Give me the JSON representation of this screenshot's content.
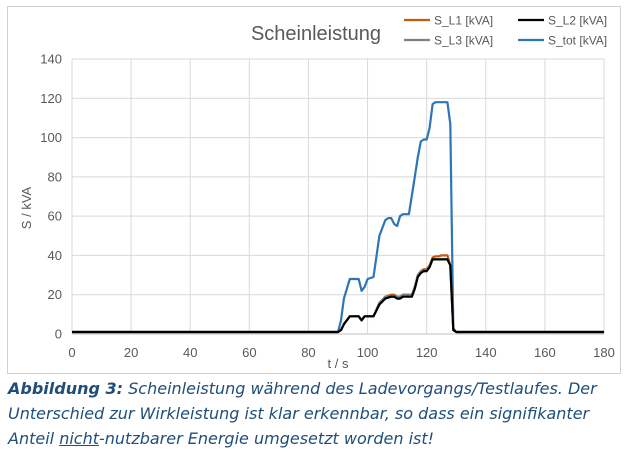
{
  "chart_data": {
    "type": "line",
    "title": "Scheinleistung",
    "xlabel": "t / s",
    "ylabel": "S / kVA",
    "xlim": [
      0,
      180
    ],
    "ylim": [
      0,
      140
    ],
    "xticks": [
      "0",
      "20",
      "40",
      "60",
      "80",
      "100",
      "120",
      "140",
      "160",
      "180"
    ],
    "yticks": [
      "0",
      "20",
      "40",
      "60",
      "80",
      "100",
      "120",
      "140"
    ],
    "grid": true,
    "legend_position": "top-right",
    "series": [
      {
        "name": "S_L1 [kVA]",
        "color": "#c55a11",
        "x": [
          0,
          90,
          91,
          92,
          94,
          96,
          97,
          98,
          99,
          101,
          102,
          104,
          106,
          108,
          109,
          110,
          111,
          112,
          114,
          115,
          116,
          117,
          118,
          119,
          120,
          121,
          122,
          123,
          124,
          125,
          126,
          127,
          128,
          129,
          130,
          131,
          132,
          135,
          180
        ],
        "y": [
          1,
          1,
          2,
          5,
          9,
          9,
          9,
          7,
          9,
          9,
          9,
          15,
          19,
          20,
          20,
          19,
          19,
          20,
          20,
          20,
          24,
          30,
          32,
          33,
          33,
          35,
          39,
          39.5,
          39.5,
          40,
          40,
          40,
          35,
          2,
          1,
          1,
          1,
          1,
          1
        ]
      },
      {
        "name": "S_L2 [kVA]",
        "color": "#000000",
        "x": [
          0,
          90,
          91,
          92,
          94,
          96,
          97,
          98,
          99,
          101,
          102,
          104,
          106,
          108,
          109,
          110,
          111,
          112,
          114,
          115,
          116,
          117,
          118,
          119,
          120,
          121,
          122,
          123,
          124,
          125,
          126,
          127,
          128,
          129,
          130,
          131,
          132,
          135,
          180
        ],
        "y": [
          1,
          1,
          2,
          5,
          9,
          9,
          9,
          7,
          9,
          9,
          9,
          15,
          18,
          19,
          19,
          18,
          18,
          19,
          19,
          19,
          23,
          29,
          31,
          32,
          32,
          34,
          38,
          38,
          38,
          38,
          38,
          38,
          35,
          2,
          1,
          1,
          1,
          1,
          1
        ]
      },
      {
        "name": "S_L3 [kVA]",
        "color": "#7f7f7f",
        "x": [
          0,
          90,
          91,
          92,
          94,
          96,
          97,
          98,
          99,
          101,
          102,
          104,
          106,
          108,
          109,
          110,
          111,
          112,
          114,
          115,
          116,
          117,
          118,
          119,
          120,
          121,
          122,
          123,
          124,
          125,
          126,
          127,
          128,
          129,
          130,
          131,
          132,
          135,
          180
        ],
        "y": [
          1,
          1,
          2,
          5,
          9,
          9,
          9,
          7,
          9,
          9,
          9,
          16,
          19,
          19,
          19,
          19,
          19,
          20,
          20,
          20,
          24,
          30,
          32,
          32,
          32,
          35,
          38,
          38,
          38,
          38,
          38,
          38,
          35,
          2,
          1,
          1,
          1,
          1,
          1
        ]
      },
      {
        "name": "S_tot [kVA]",
        "color": "#2e75b6",
        "x": [
          0,
          90,
          91,
          92,
          94,
          96,
          97,
          98,
          99,
          100,
          102,
          104,
          106,
          107,
          108,
          109,
          110,
          111,
          112,
          113,
          114,
          116,
          117,
          118,
          119,
          120,
          121,
          122,
          123,
          124,
          125,
          126,
          127,
          128,
          129,
          130,
          131,
          132,
          135,
          180
        ],
        "y": [
          1,
          1,
          7,
          18,
          28,
          28,
          28,
          22,
          24,
          28,
          29,
          50,
          58,
          59,
          59,
          56,
          55,
          60,
          61,
          61,
          61,
          80,
          90,
          98,
          99,
          99,
          105,
          117,
          118,
          118,
          118,
          118,
          118,
          107,
          3,
          1,
          1,
          1,
          1,
          1
        ]
      }
    ]
  },
  "caption": {
    "label": "Abbildung 3:",
    "text_1": " Scheinleistung während des Ladevorgangs/Testlaufes. Der Unterschied zur Wirkleistung ist klar erkennbar, so dass ein signifikanter Anteil ",
    "underlined": "nicht",
    "text_2": "-nutzbarer Energie umgesetzt worden ist!"
  }
}
